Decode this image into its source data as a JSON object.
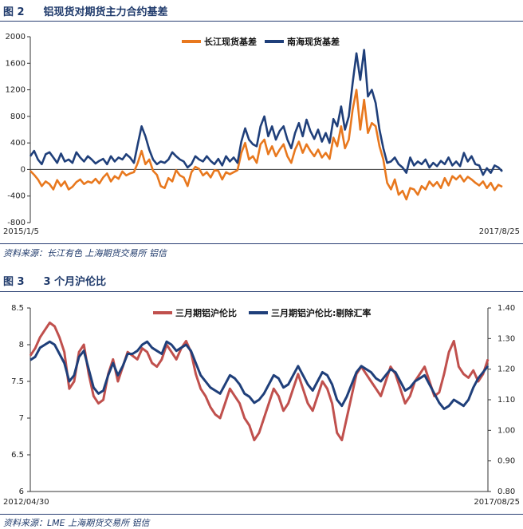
{
  "figures": [
    {
      "number": "图 2",
      "title": "铝现货对期货主力合约基差",
      "source": "资料来源：长江有色   上海期货交易所   铝信"
    },
    {
      "number": "图 3",
      "title": "3 个月沪伦比",
      "source": "资料来源：LME   上海期货交易所   铝信"
    }
  ],
  "chart_data": [
    {
      "type": "line",
      "title": "铝现货对期货主力合约基差",
      "x_start": "2015/1/5",
      "x_end": "2017/8/25",
      "xlabel": "",
      "ylabel": "",
      "ylim": [
        -800,
        2000
      ],
      "yticks": [
        "2000",
        "1600",
        "1200",
        "800",
        "400",
        "0",
        "-400",
        "-800"
      ],
      "legend_position": "top-center",
      "grid": false,
      "series": [
        {
          "name": "长江现货基差",
          "color": "#e8781e",
          "values": [
            -20,
            -80,
            -150,
            -250,
            -180,
            -220,
            -300,
            -160,
            -250,
            -180,
            -300,
            -260,
            -190,
            -150,
            -220,
            -180,
            -200,
            -140,
            -210,
            -120,
            -60,
            -180,
            -100,
            -140,
            -30,
            -90,
            -60,
            -40,
            100,
            280,
            80,
            150,
            -20,
            -80,
            -250,
            -280,
            -130,
            -180,
            -10,
            -90,
            -120,
            -250,
            -40,
            40,
            10,
            -90,
            -40,
            -120,
            -10,
            -20,
            -150,
            -40,
            -70,
            -40,
            -10,
            250,
            400,
            150,
            200,
            100,
            380,
            450,
            230,
            350,
            200,
            300,
            380,
            200,
            100,
            300,
            420,
            250,
            380,
            280,
            200,
            300,
            180,
            250,
            160,
            480,
            350,
            650,
            320,
            450,
            900,
            1200,
            600,
            1050,
            550,
            700,
            650,
            350,
            150,
            -200,
            -300,
            -150,
            -380,
            -320,
            -450,
            -280,
            -300,
            -380,
            -250,
            -300,
            -180,
            -250,
            -190,
            -280,
            -130,
            -240,
            -100,
            -150,
            -90,
            -180,
            -110,
            -150,
            -200,
            -240,
            -180,
            -280,
            -200,
            -310,
            -230,
            -260
          ]
        },
        {
          "name": "南海现货基差",
          "color": "#1f3f7a",
          "values": [
            200,
            280,
            150,
            80,
            230,
            260,
            180,
            100,
            240,
            120,
            150,
            100,
            260,
            180,
            120,
            200,
            150,
            90,
            130,
            160,
            80,
            200,
            120,
            180,
            150,
            230,
            180,
            100,
            380,
            650,
            500,
            300,
            150,
            80,
            120,
            100,
            150,
            260,
            200,
            150,
            120,
            30,
            80,
            200,
            150,
            120,
            200,
            130,
            80,
            160,
            60,
            200,
            120,
            180,
            100,
            420,
            620,
            450,
            380,
            350,
            650,
            800,
            500,
            650,
            450,
            580,
            650,
            450,
            320,
            550,
            700,
            500,
            750,
            580,
            460,
            600,
            420,
            550,
            400,
            760,
            650,
            950,
            600,
            800,
            1300,
            1750,
            1350,
            1800,
            1100,
            1200,
            1000,
            600,
            320,
            100,
            120,
            180,
            80,
            30,
            -50,
            180,
            60,
            120,
            80,
            150,
            30,
            100,
            50,
            130,
            80,
            180,
            60,
            120,
            50,
            250,
            120,
            200,
            80,
            60,
            -80,
            20,
            -50,
            60,
            30,
            -30
          ]
        }
      ]
    },
    {
      "type": "line",
      "title": "3 个月沪伦比",
      "x_start": "2012/04/30",
      "x_end": "2017/08/25",
      "xlabel": "",
      "ylabel": "",
      "ylim": [
        6,
        8.5
      ],
      "yticks_left": [
        "8.5",
        "8",
        "7.5",
        "7",
        "6.5",
        "6"
      ],
      "ylim_right": [
        0.8,
        1.4
      ],
      "yticks_right": [
        "1.40",
        "1.30",
        "1.20",
        "1.10",
        "1.00",
        "0.90",
        "0.80"
      ],
      "legend_position": "top-center",
      "grid": false,
      "series": [
        {
          "name": "三月期铝沪伦比",
          "color": "#c0504d",
          "axis": "left",
          "values": [
            7.85,
            7.95,
            8.1,
            8.2,
            8.3,
            8.25,
            8.1,
            7.9,
            7.4,
            7.5,
            7.9,
            8.0,
            7.6,
            7.3,
            7.2,
            7.25,
            7.6,
            7.8,
            7.5,
            7.7,
            7.9,
            7.85,
            7.8,
            7.95,
            7.9,
            7.75,
            7.7,
            7.8,
            8.0,
            7.9,
            7.8,
            7.95,
            8.05,
            7.9,
            7.6,
            7.4,
            7.3,
            7.15,
            7.05,
            7.0,
            7.2,
            7.4,
            7.3,
            7.2,
            7.0,
            6.9,
            6.7,
            6.8,
            7.0,
            7.2,
            7.4,
            7.3,
            7.1,
            7.2,
            7.4,
            7.6,
            7.4,
            7.2,
            7.1,
            7.3,
            7.5,
            7.4,
            7.2,
            6.8,
            6.7,
            7.0,
            7.3,
            7.6,
            7.7,
            7.6,
            7.5,
            7.4,
            7.3,
            7.5,
            7.7,
            7.6,
            7.4,
            7.2,
            7.3,
            7.5,
            7.6,
            7.7,
            7.5,
            7.3,
            7.35,
            7.6,
            7.9,
            8.05,
            7.7,
            7.6,
            7.55,
            7.65,
            7.5,
            7.6,
            7.8
          ]
        },
        {
          "name": "三月期铝沪伦比:剔除汇率",
          "color": "#1f3f7a",
          "axis": "right",
          "values": [
            1.23,
            1.24,
            1.27,
            1.28,
            1.29,
            1.28,
            1.25,
            1.22,
            1.16,
            1.18,
            1.24,
            1.26,
            1.2,
            1.14,
            1.12,
            1.13,
            1.18,
            1.22,
            1.18,
            1.21,
            1.25,
            1.25,
            1.26,
            1.28,
            1.29,
            1.27,
            1.26,
            1.25,
            1.29,
            1.28,
            1.26,
            1.27,
            1.28,
            1.26,
            1.22,
            1.18,
            1.16,
            1.14,
            1.13,
            1.12,
            1.15,
            1.18,
            1.17,
            1.15,
            1.12,
            1.11,
            1.09,
            1.1,
            1.12,
            1.15,
            1.18,
            1.17,
            1.14,
            1.15,
            1.18,
            1.21,
            1.18,
            1.15,
            1.13,
            1.16,
            1.19,
            1.18,
            1.15,
            1.1,
            1.08,
            1.11,
            1.15,
            1.19,
            1.21,
            1.2,
            1.19,
            1.17,
            1.16,
            1.18,
            1.2,
            1.19,
            1.16,
            1.13,
            1.14,
            1.16,
            1.17,
            1.18,
            1.15,
            1.12,
            1.09,
            1.07,
            1.08,
            1.1,
            1.09,
            1.08,
            1.1,
            1.14,
            1.17,
            1.19,
            1.21
          ]
        }
      ]
    }
  ]
}
